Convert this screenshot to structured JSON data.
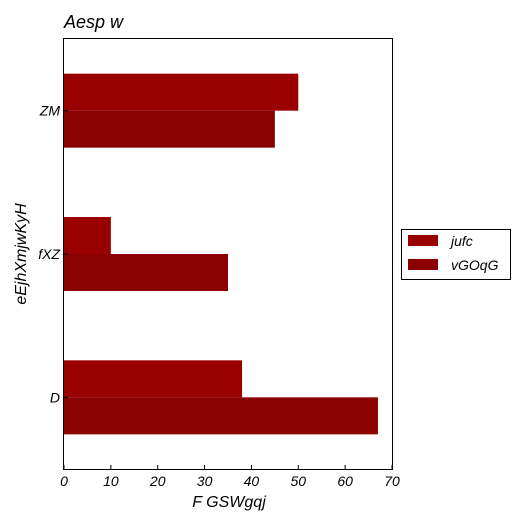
{
  "chart_data": {
    "type": "bar",
    "orientation": "horizontal",
    "title": "Aesp w",
    "xlabel": "F GSWgqj",
    "ylabel": "eEjhXmjwKyH",
    "categories": [
      "ZM",
      "fXZ",
      "D"
    ],
    "series": [
      {
        "name": "jufc",
        "values": [
          50,
          10,
          38
        ],
        "color": "#990000"
      },
      {
        "name": "vGOqG",
        "values": [
          45,
          35,
          67
        ],
        "color": "#8b0000"
      }
    ],
    "xlim": [
      0,
      70
    ],
    "xticks": [
      0,
      10,
      20,
      30,
      40,
      50,
      60,
      70
    ],
    "grid": false,
    "legend_position": "outside-right"
  }
}
